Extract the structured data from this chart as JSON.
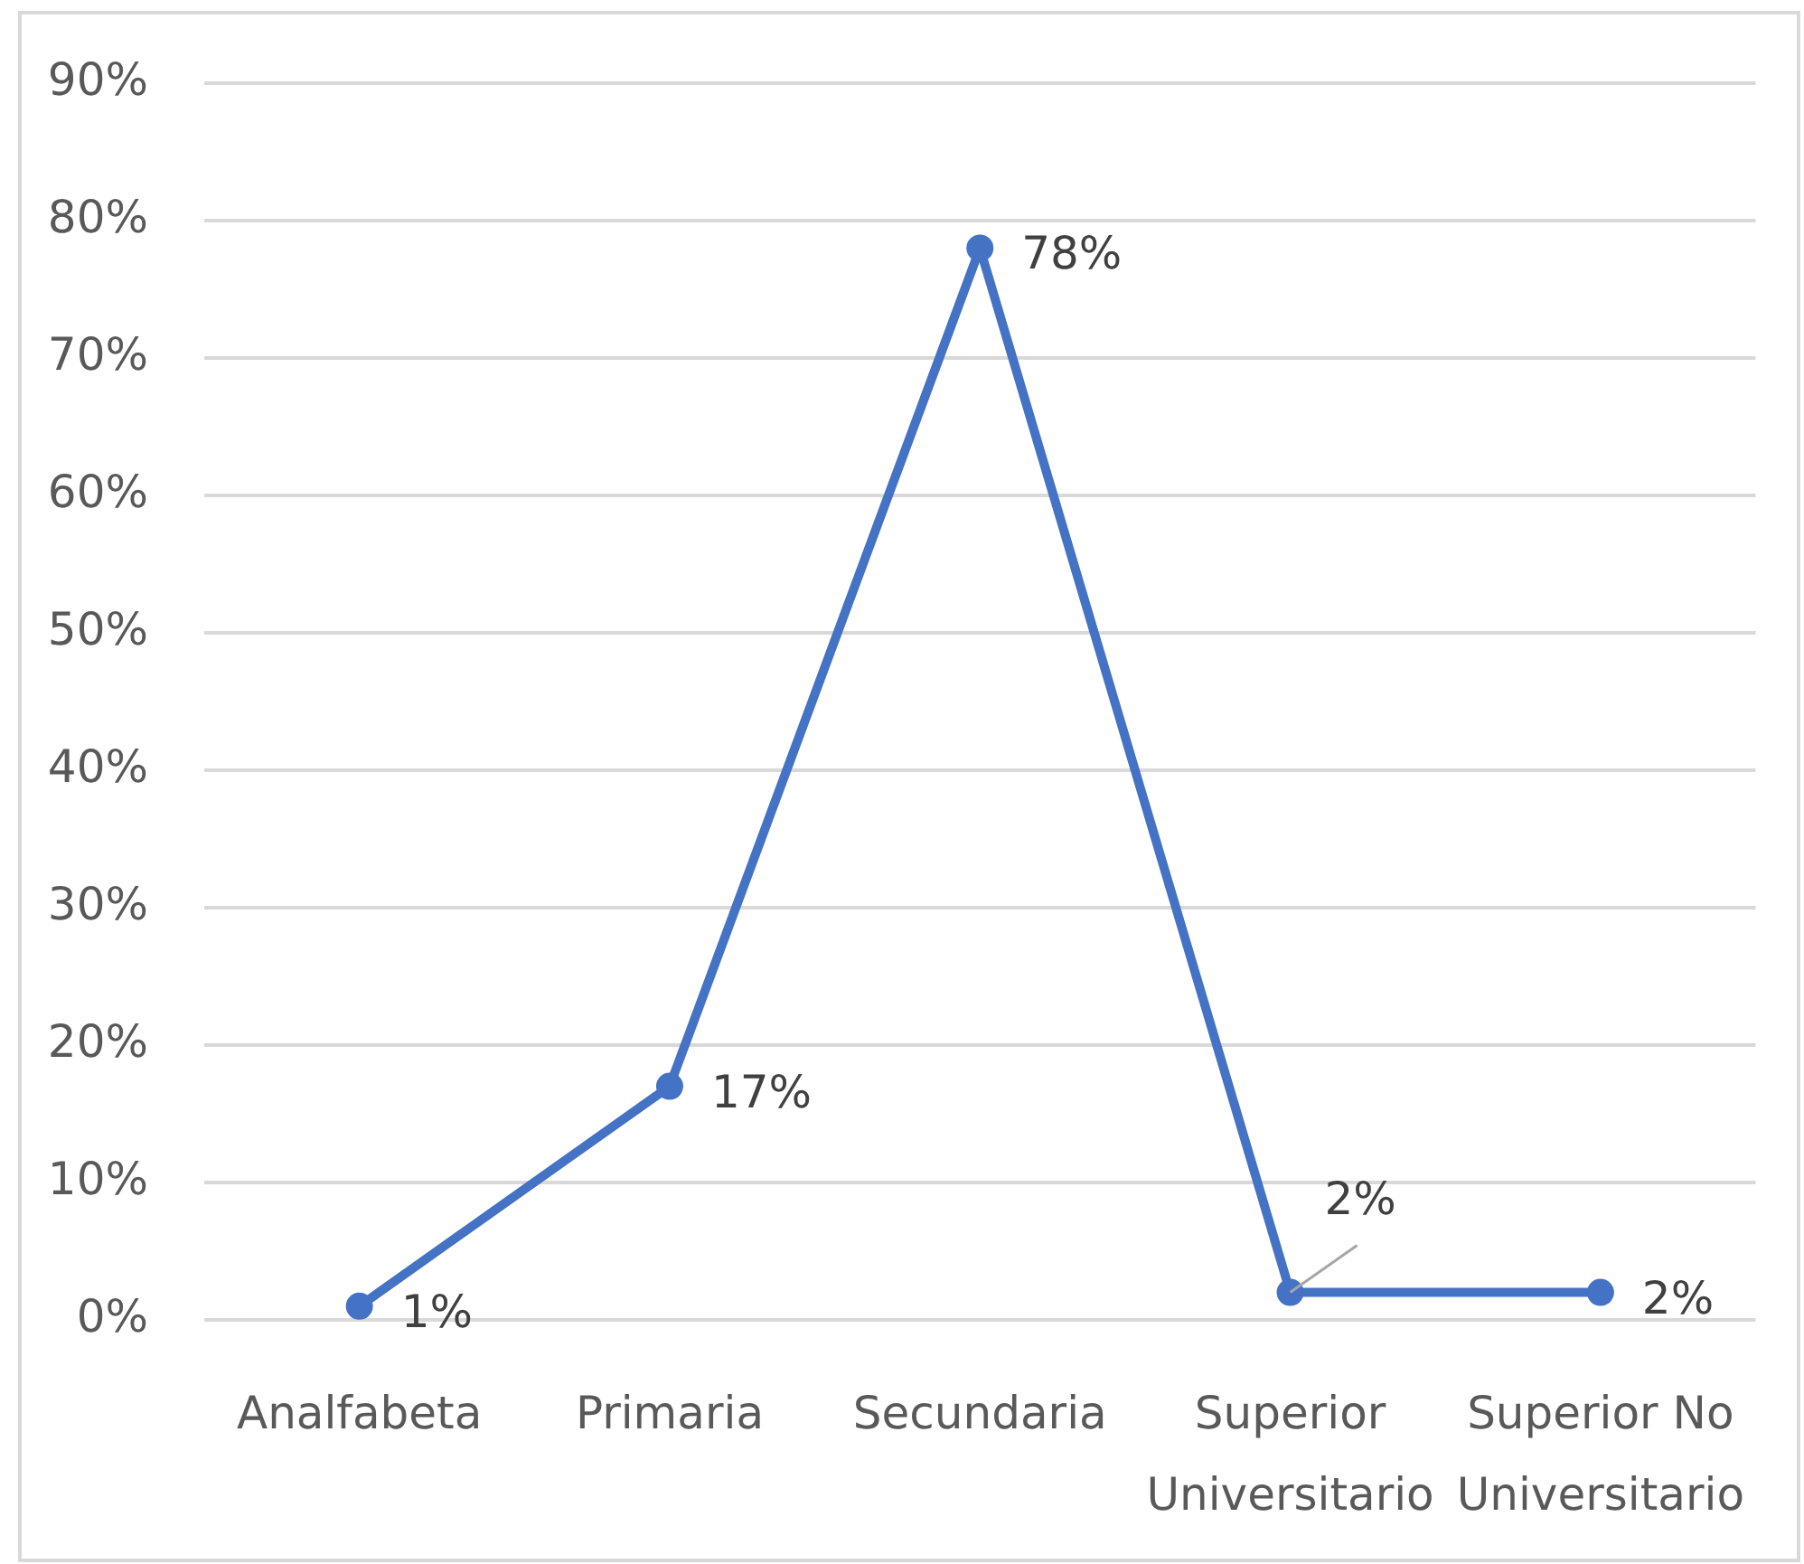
{
  "chart_data": {
    "type": "line",
    "categories": [
      "Analfabeta",
      "Primaria",
      "Secundaria",
      "Superior Universitario",
      "Superior No Universitario"
    ],
    "series": [
      {
        "color": "#4472c4",
        "values": [
          1,
          17,
          78,
          2,
          2
        ],
        "value_labels": [
          "1%",
          "17%",
          "78%",
          "2%",
          "2%"
        ]
      }
    ],
    "ylim": [
      0,
      90
    ],
    "yticks": [
      {
        "value": 0,
        "label": "0%"
      },
      {
        "value": 10,
        "label": "10%"
      },
      {
        "value": 20,
        "label": "20%"
      },
      {
        "value": 30,
        "label": "30%"
      },
      {
        "value": 40,
        "label": "40%"
      },
      {
        "value": 50,
        "label": "50%"
      },
      {
        "value": 60,
        "label": "60%"
      },
      {
        "value": 70,
        "label": "70%"
      },
      {
        "value": 80,
        "label": "80%"
      },
      {
        "value": 90,
        "label": "90%"
      }
    ],
    "grid": "y",
    "marker": "circle",
    "line_style": "solid",
    "legend": false
  }
}
